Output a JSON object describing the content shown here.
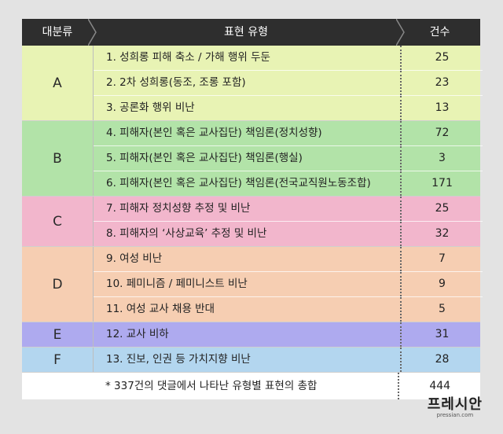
{
  "header": {
    "category": "대분류",
    "type": "표현 유형",
    "count": "건수"
  },
  "groups": [
    {
      "label": "A",
      "color": "#e8f3b4",
      "rows": [
        {
          "label": "1.  성희롱 피해 축소 /  가해 행위 두둔",
          "count": "25"
        },
        {
          "label": "2.  2차 성희롱(동조, 조롱 포함)",
          "count": "23"
        },
        {
          "label": "3.  공론화 행위 비난",
          "count": "13"
        }
      ]
    },
    {
      "label": "B",
      "color": "#b2e3a8",
      "rows": [
        {
          "label": "4.  피해자(본인 혹은 교사집단) 책임론(정치성향)",
          "count": "72"
        },
        {
          "label": "5.  피해자(본인 혹은 교사집단) 책임론(행실)",
          "count": "3"
        },
        {
          "label": "6.  피해자(본인 혹은 교사집단) 책임론(전국교직원노동조합)",
          "count": "171"
        }
      ]
    },
    {
      "label": "C",
      "color": "#f2b6cc",
      "rows": [
        {
          "label": "7.  피해자 정치성향 추정 및 비난",
          "count": "25"
        },
        {
          "label": "8. 피해자의 ‘사상교육’ 추정 및 비난",
          "count": "32"
        }
      ]
    },
    {
      "label": "D",
      "color": "#f6ceb2",
      "rows": [
        {
          "label": "9.  여성 비난",
          "count": "7"
        },
        {
          "label": "10. 페미니즘 / 페미니스트 비난",
          "count": "9"
        },
        {
          "label": "11.  여성 교사 채용 반대",
          "count": "5"
        }
      ]
    },
    {
      "label": "E",
      "color": "#aeaaef",
      "rows": [
        {
          "label": "12. 교사 비하",
          "count": "31"
        }
      ]
    },
    {
      "label": "F",
      "color": "#b3d6ef",
      "rows": [
        {
          "label": "13. 진보, 인권 등 가치지향 비난",
          "count": "28"
        }
      ]
    }
  ],
  "total": {
    "label": "* 337건의 댓글에서 나타난 유형별 표현의 총합",
    "count": "444"
  },
  "logo": {
    "main": "프레시안",
    "sub": "pressian.com"
  }
}
